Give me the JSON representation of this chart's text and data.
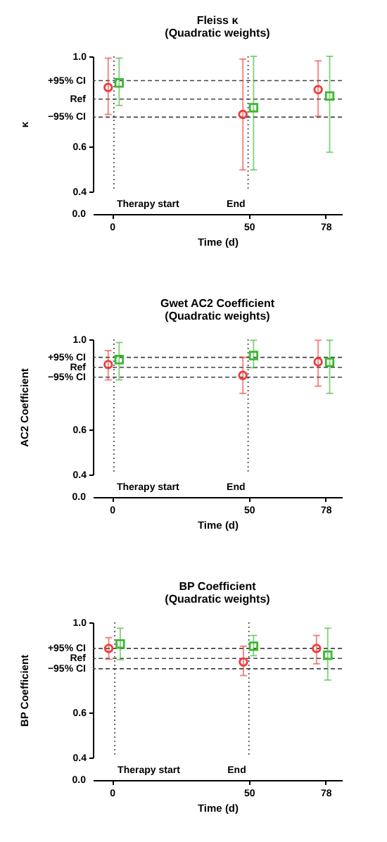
{
  "chart_data": [
    {
      "type": "scatter",
      "title": "Fleiss κ",
      "subtitle": "(Quadratic weights)",
      "xlabel": "Time (d)",
      "ylabel": "κ",
      "xlim": [
        -7,
        84
      ],
      "xticks": [
        0,
        50,
        78
      ],
      "ylim": [
        0.4,
        1
      ],
      "yticks": [
        {
          "value": 0.4,
          "label": "0.4"
        },
        {
          "value": 0.6,
          "label": "0.6"
        },
        {
          "value": 1,
          "label": "1.0"
        }
      ],
      "annotations": [
        "0.0"
      ],
      "series": [
        {
          "color": "#ee3b3b",
          "marker": "circle",
          "x": [
            -1.4,
            47.8,
            75.3
          ],
          "values": [
            0.862,
            0.742,
            0.852
          ],
          "errors": [
            [
              0.742,
              0.992
            ],
            [
              0.496,
              0.988
            ],
            [
              0.734,
              0.98
            ]
          ]
        },
        {
          "color": "#3cb832",
          "marker": "square",
          "x": [
            2.6,
            51.7,
            79.5
          ],
          "values": [
            0.882,
            0.772,
            0.824
          ],
          "errors": [
            [
              0.782,
              0.992
            ],
            [
              0.496,
              1.0
            ],
            [
              0.574,
              1.0
            ]
          ]
        }
      ],
      "ref_lines": [
        {
          "axis": "y",
          "value": 0.73,
          "label": "−95% CI",
          "line_style": "dashed"
        },
        {
          "axis": "y",
          "value": 0.81,
          "label": "Ref",
          "line_style": "dashed"
        },
        {
          "axis": "y",
          "value": 0.892,
          "label": "+95% CI",
          "line_style": "dashed"
        },
        {
          "axis": "x",
          "value": 0.7,
          "label": "Therapy start",
          "line_style": "dotted"
        },
        {
          "axis": "x",
          "value": 49.7,
          "label": "End",
          "line_style": "dotted"
        }
      ]
    },
    {
      "type": "scatter",
      "title": "Gwet AC2 Coefficient",
      "subtitle": "(Quadratic weights)",
      "xlabel": "Time (d)",
      "ylabel": "AC2 Coefficient",
      "xlim": [
        -7,
        84
      ],
      "xticks": [
        0,
        50,
        78
      ],
      "ylim": [
        0.4,
        1
      ],
      "yticks": [
        {
          "value": 0.4,
          "label": "0.4"
        },
        {
          "value": 0.6,
          "label": "0.6"
        },
        {
          "value": 1,
          "label": "1.0"
        }
      ],
      "annotations": [
        "0.0"
      ],
      "series": [
        {
          "color": "#ee3b3b",
          "marker": "circle",
          "x": [
            -1.4,
            47.8,
            75.3
          ],
          "values": [
            0.888,
            0.84,
            0.9
          ],
          "errors": [
            [
              0.82,
              0.95
            ],
            [
              0.76,
              0.92
            ],
            [
              0.792,
              0.996
            ]
          ]
        },
        {
          "color": "#3cb832",
          "marker": "square",
          "x": [
            2.6,
            51.7,
            79.5
          ],
          "values": [
            0.91,
            0.928,
            0.898
          ],
          "errors": [
            [
              0.82,
              0.986
            ],
            [
              0.874,
              0.996
            ],
            [
              0.76,
              0.996
            ]
          ]
        }
      ],
      "ref_lines": [
        {
          "axis": "y",
          "value": 0.832,
          "label": "−95% CI",
          "line_style": "dashed"
        },
        {
          "axis": "y",
          "value": 0.876,
          "label": "Ref",
          "line_style": "dashed"
        },
        {
          "axis": "y",
          "value": 0.92,
          "label": "+95% CI",
          "line_style": "dashed"
        },
        {
          "axis": "x",
          "value": 0.7,
          "label": "Therapy start",
          "line_style": "dotted"
        },
        {
          "axis": "x",
          "value": 49.7,
          "label": "End",
          "line_style": "dotted"
        }
      ]
    },
    {
      "type": "scatter",
      "title": "BP Coefficient",
      "subtitle": "(Quadratic weights)",
      "xlabel": "Time (d)",
      "ylabel": "BP Coefficient",
      "xlim": [
        -7,
        84
      ],
      "xticks": [
        0,
        50,
        78
      ],
      "ylim": [
        0.4,
        1
      ],
      "yticks": [
        {
          "value": 0.4,
          "label": "0.4"
        },
        {
          "value": 0.6,
          "label": "0.6"
        },
        {
          "value": 1,
          "label": "1.0"
        }
      ],
      "annotations": [
        "0.0"
      ],
      "series": [
        {
          "color": "#ee3b3b",
          "marker": "circle",
          "x": [
            -1.2,
            48,
            74.7
          ],
          "values": [
            0.884,
            0.824,
            0.884
          ],
          "errors": [
            [
              0.836,
              0.932
            ],
            [
              0.764,
              0.894
            ],
            [
              0.816,
              0.942
            ]
          ]
        },
        {
          "color": "#3cb832",
          "marker": "square",
          "x": [
            3,
            51.7,
            78.8
          ],
          "values": [
            0.904,
            0.894,
            0.854
          ],
          "errors": [
            [
              0.834,
              0.974
            ],
            [
              0.852,
              0.942
            ],
            [
              0.744,
              0.974
            ]
          ]
        }
      ],
      "ref_lines": [
        {
          "axis": "y",
          "value": 0.794,
          "label": "−95% CI",
          "line_style": "dashed"
        },
        {
          "axis": "y",
          "value": 0.84,
          "label": "Ref",
          "line_style": "dashed"
        },
        {
          "axis": "y",
          "value": 0.884,
          "label": "+95% CI",
          "line_style": "dashed"
        },
        {
          "axis": "x",
          "value": 1,
          "label": "Therapy start",
          "line_style": "dotted"
        },
        {
          "axis": "x",
          "value": 50,
          "label": "End",
          "line_style": "dotted"
        }
      ]
    }
  ]
}
